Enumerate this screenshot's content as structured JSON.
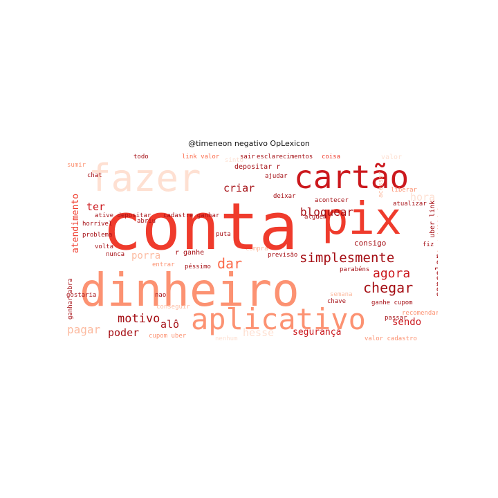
{
  "title": "@timeneon negativo OpLexicon",
  "palette": {
    "dark": "#a50f15",
    "red": "#cb181d",
    "orange_red": "#ef3b2c",
    "salmon": "#fb6a4a",
    "light_salmon": "#fc9272",
    "pale": "#fcbba1",
    "very_pale": "#fee0d2"
  },
  "words": {
    "conta": "conta",
    "pix": "pix",
    "dinheiro": "dinheiro",
    "fazer": "fazer",
    "cartao": "cartão",
    "aplicativo": "aplicativo",
    "simplesmente": "simplesmente",
    "agora": "agora",
    "chegar": "chegar",
    "dar": "dar",
    "bloquear": "bloquear",
    "criar": "criar",
    "motivo": "motivo",
    "pagar": "pagar",
    "poder": "poder",
    "alo": "alô",
    "porra": "porra",
    "sendo": "sendo",
    "seguranca": "segurança",
    "consigo": "consigo",
    "cancelar": "cancelar",
    "atendimento": "atendimento",
    "ter": "ter",
    "hora": "hora",
    "depositar_r": "depositar r",
    "link_valor": "link valor",
    "ative_depositar": "ative depositar",
    "cadastre_ganhar": "cadastre ganhar",
    "cupom_uber": "cupom uber",
    "ganhe_cupom": "ganhe cupom",
    "valor_cadastro": "valor cadastro",
    "horrivel": "horrível",
    "problema": "problema",
    "volta": "volta",
    "nunca": "nunca",
    "entrar": "entrar",
    "pessimo": "péssimo",
    "r_ganhe": "r ganhe",
    "abriu": "abriu",
    "puta": "puta",
    "previsao": "previsão",
    "parabens": "parabéns",
    "alguem": "alguém",
    "deixar": "deixar",
    "acontecer": "acontecer",
    "liberar": "liberar",
    "atualizar": "atualizar",
    "uber_link": "uber link",
    "instabilidade": "instabilidade",
    "acessar": "acessar",
    "fiz": "fiz",
    "passar": "passar",
    "recomendar": "recomendar",
    "chave": "chave",
    "semana": "semana",
    "conseguir": "conseguir",
    "nao": "nao",
    "gostaria": "gostaria",
    "ganhar_abra": "ganhar abra",
    "hesse": "hesse",
    "compra": "compra",
    "todo": "todo",
    "sair": "sair",
    "esclarecimentos": "esclarecimentos",
    "coisa": "coisa",
    "ajudar": "ajudar",
    "chat": "chat",
    "sumir": "sumir",
    "valor": "valor",
    "hesito": "hesito",
    "nenhum": "nenhum",
    "sinto": "sinto"
  }
}
